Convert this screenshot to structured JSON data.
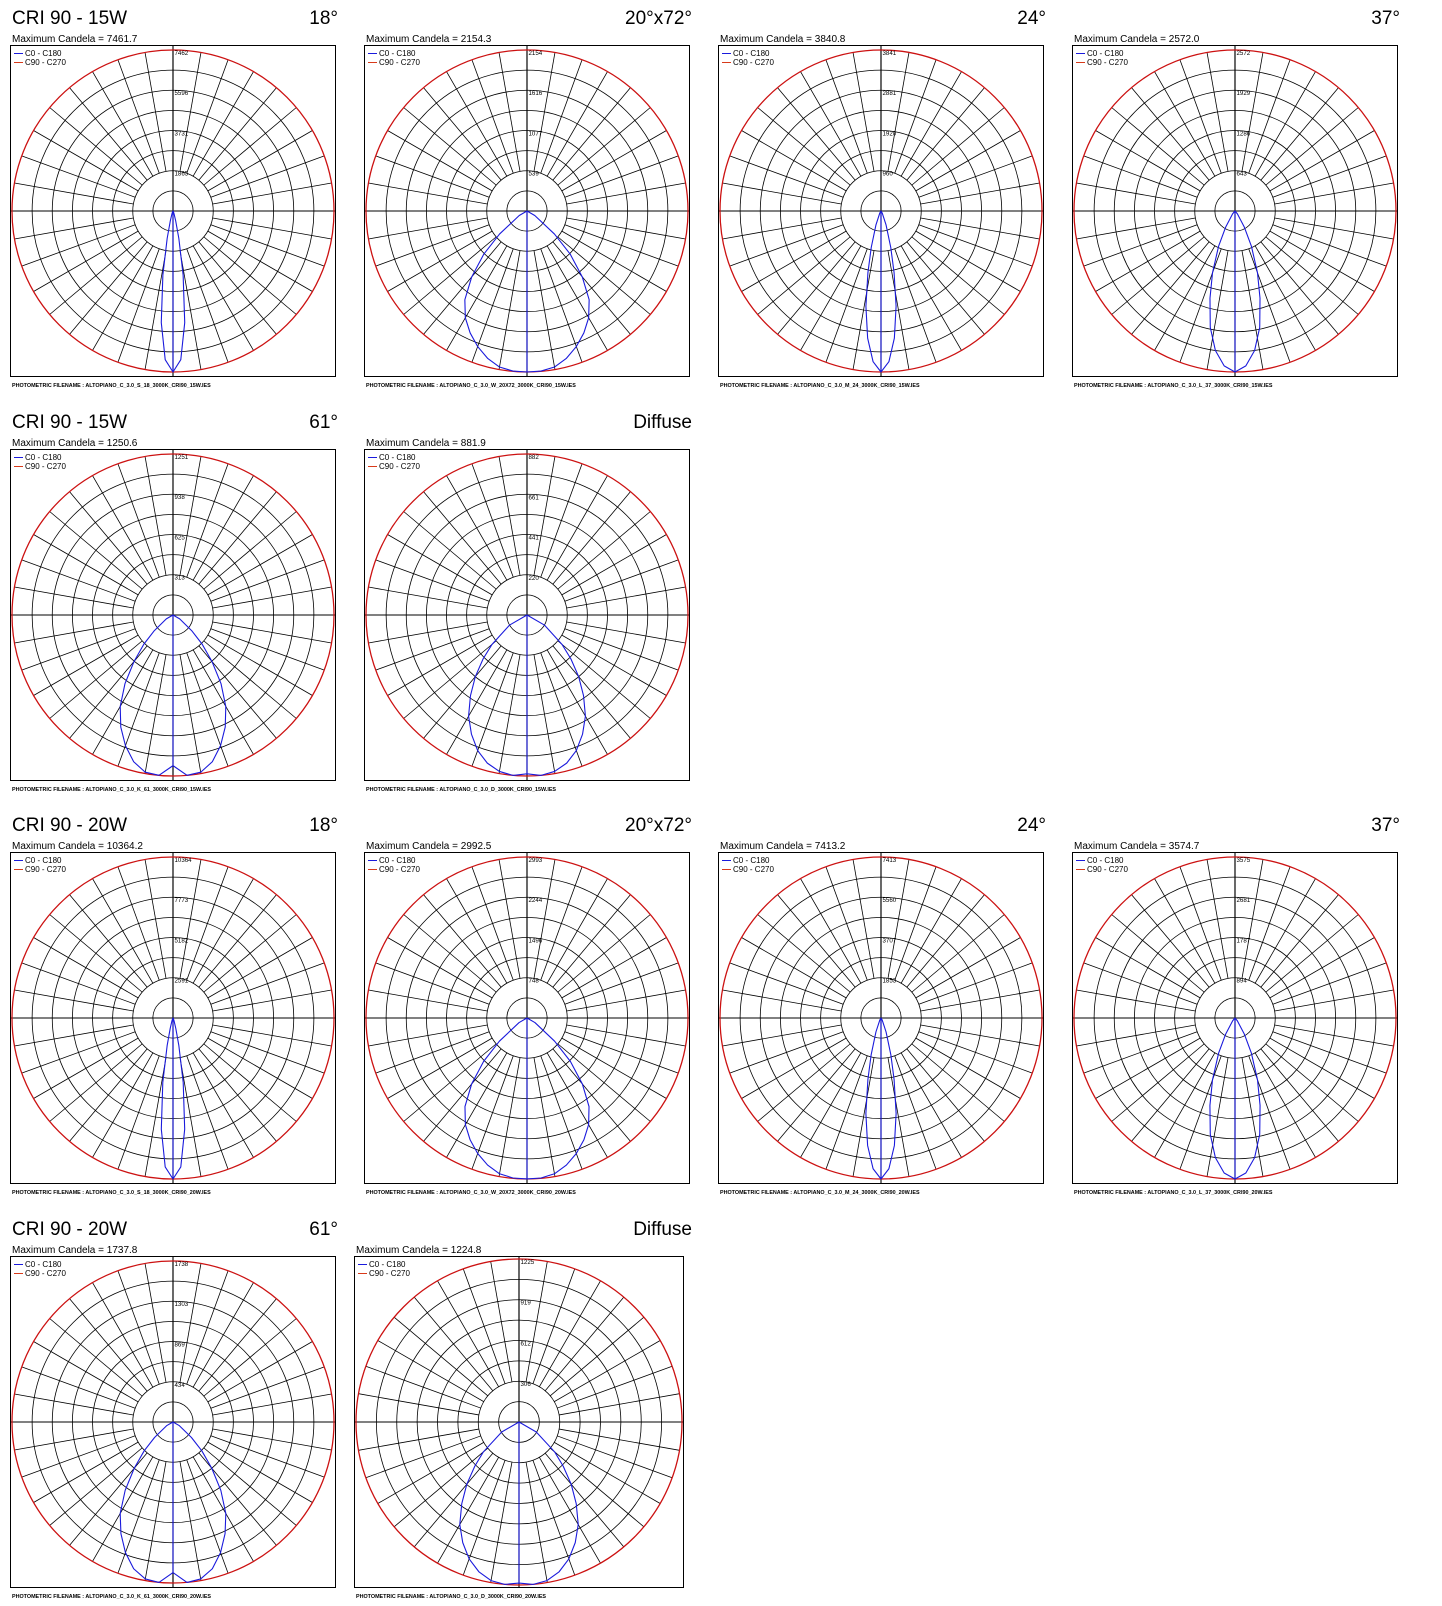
{
  "colors": {
    "c0": "#1a1adc",
    "c90": "#d83a1a",
    "outer": "#cc1111",
    "grid": "#000000"
  },
  "charts": [
    {
      "group": "CRI 90 - 15W",
      "beam": "18°",
      "max": "Maximum Candela = 7461.7",
      "ticks": [
        "7462",
        "5596",
        "3731",
        "1865"
      ],
      "file": "PHOTOMETRIC FILENAME : ALTOPIANO_C_3.0_S_18_3000K_CRI90_15W.IES"
    },
    {
      "group": "",
      "beam": "20°x72°",
      "max": "Maximum Candela = 2154.3",
      "ticks": [
        "2154",
        "1616",
        "1077",
        "539"
      ],
      "file": "PHOTOMETRIC FILENAME : ALTOPIANO_C_3.0_W_20X72_3000K_CRI90_15W.IES"
    },
    {
      "group": "",
      "beam": "24°",
      "max": "Maximum Candela = 3840.8",
      "ticks": [
        "3841",
        "2881",
        "1920",
        "960"
      ],
      "file": "PHOTOMETRIC FILENAME : ALTOPIANO_C_3.0_M_24_3000K_CRI90_15W.IES"
    },
    {
      "group": "",
      "beam": "37°",
      "max": "Maximum Candela = 2572.0",
      "ticks": [
        "2572",
        "1929",
        "1286",
        "643"
      ],
      "file": "PHOTOMETRIC FILENAME : ALTOPIANO_C_3.0_L_37_3000K_CRI90_15W.IES"
    },
    {
      "group": "CRI 90 - 15W",
      "beam": "61°",
      "max": "Maximum Candela = 1250.6",
      "ticks": [
        "1251",
        "938",
        "625",
        "313"
      ],
      "file": "PHOTOMETRIC FILENAME : ALTOPIANO_C_3.0_K_61_3000K_CRI90_15W.IES"
    },
    {
      "group": "",
      "beam": "Diffuse",
      "max": "Maximum Candela = 881.9",
      "ticks": [
        "882",
        "661",
        "441",
        "220"
      ],
      "file": "PHOTOMETRIC FILENAME : ALTOPIANO_C_3.0_D_3000K_CRI90_15W.IES"
    },
    {
      "group": "CRI 90 - 20W",
      "beam": "18°",
      "max": "Maximum Candela = 10364.2",
      "ticks": [
        "10364",
        "7773",
        "5182",
        "2591"
      ],
      "file": "PHOTOMETRIC FILENAME : ALTOPIANO_C_3.0_S_18_3000K_CRI90_20W.IES"
    },
    {
      "group": "",
      "beam": "20°x72°",
      "max": "Maximum Candela = 2992.5",
      "ticks": [
        "2993",
        "2244",
        "1496",
        "748"
      ],
      "file": "PHOTOMETRIC FILENAME : ALTOPIANO_C_3.0_W_20X72_3000K_CRI90_20W.IES"
    },
    {
      "group": "",
      "beam": "24°",
      "max": "Maximum Candela = 7413.2",
      "ticks": [
        "7413",
        "5560",
        "3707",
        "1853"
      ],
      "file": "PHOTOMETRIC FILENAME : ALTOPIANO_C_3.0_M_24_3000K_CRI90_20W.IES"
    },
    {
      "group": "",
      "beam": "37°",
      "max": "Maximum Candela = 3574.7",
      "ticks": [
        "3575",
        "2681",
        "1787",
        "894"
      ],
      "file": "PHOTOMETRIC FILENAME : ALTOPIANO_C_3.0_L_37_3000K_CRI90_20W.IES"
    },
    {
      "group": "CRI 90 - 20W",
      "beam": "61°",
      "max": "Maximum Candela = 1737.8",
      "ticks": [
        "1738",
        "1303",
        "869",
        "434"
      ],
      "file": "PHOTOMETRIC FILENAME : ALTOPIANO_C_3.0_K_61_3000K_CRI90_20W.IES"
    },
    {
      "group": "",
      "beam": "Diffuse",
      "max": "Maximum Candela = 1224.8",
      "ticks": [
        "1225",
        "919",
        "612",
        "306"
      ],
      "file": "PHOTOMETRIC FILENAME : ALTOPIANO_C_3.0_D_3000K_CRI90_20W.IES"
    }
  ],
  "legend": {
    "c0": "C0 - C180",
    "c90": "C90 - C270"
  },
  "chart_data": [
    {
      "type": "polar",
      "max_candela": 7461.7,
      "r_ticks": [
        1865,
        3731,
        5596,
        7462
      ],
      "series": [
        {
          "name": "C0 - C180",
          "angle_deg": [
            0,
            3,
            6,
            9,
            12,
            15,
            20,
            30
          ],
          "candela": [
            7461.7,
            6900,
            5200,
            3000,
            1300,
            500,
            150,
            40
          ]
        },
        {
          "name": "C90 - C270",
          "angle_deg": [
            0,
            3,
            6,
            9,
            12,
            15,
            20,
            30
          ],
          "candela": [
            7461.7,
            6900,
            5200,
            3000,
            1300,
            500,
            150,
            40
          ]
        }
      ]
    },
    {
      "type": "polar",
      "max_candela": 2154.3,
      "r_ticks": [
        539,
        1077,
        1616,
        2154
      ],
      "series": [
        {
          "name": "C0 - C180",
          "angle_deg": [
            0,
            5,
            10,
            15,
            20,
            25,
            30,
            35,
            40,
            45,
            50,
            60
          ],
          "candela": [
            2154,
            2150,
            2120,
            2040,
            1930,
            1800,
            1650,
            1450,
            1150,
            820,
            480,
            120
          ]
        },
        {
          "name": "C90 - C270",
          "angle_deg": [
            0,
            5,
            10,
            15,
            20,
            25,
            30,
            35,
            40,
            45,
            50,
            60
          ],
          "candela": [
            2154,
            2150,
            2120,
            2040,
            1930,
            1800,
            1650,
            1450,
            1150,
            820,
            480,
            120
          ]
        }
      ]
    },
    {
      "type": "polar",
      "max_candela": 3840.8,
      "r_ticks": [
        960,
        1920,
        2881,
        3841
      ],
      "series": [
        {
          "name": "C0 - C180",
          "angle_deg": [
            0,
            3,
            6,
            9,
            12,
            15,
            20,
            30
          ],
          "candela": [
            3840.8,
            3600,
            3050,
            2300,
            1500,
            900,
            350,
            60
          ]
        },
        {
          "name": "C90 - C270",
          "angle_deg": [
            0,
            3,
            6,
            9,
            12,
            15,
            20,
            30
          ],
          "candela": [
            3840.8,
            3600,
            3050,
            2300,
            1500,
            900,
            350,
            60
          ]
        }
      ]
    },
    {
      "type": "polar",
      "max_candela": 2572.0,
      "r_ticks": [
        643,
        1286,
        1929,
        2572
      ],
      "series": [
        {
          "name": "C0 - C180",
          "angle_deg": [
            0,
            4,
            8,
            12,
            16,
            20,
            25,
            30,
            40
          ],
          "candela": [
            2572,
            2480,
            2250,
            1900,
            1450,
            1050,
            620,
            300,
            60
          ]
        },
        {
          "name": "C90 - C270",
          "angle_deg": [
            0,
            4,
            8,
            12,
            16,
            20,
            25,
            30,
            40
          ],
          "candela": [
            2572,
            2480,
            2250,
            1900,
            1450,
            1050,
            620,
            300,
            60
          ]
        }
      ]
    },
    {
      "type": "polar",
      "max_candela": 1250.6,
      "r_ticks": [
        313,
        625,
        938,
        1251
      ],
      "series": [
        {
          "name": "C0 - C180",
          "angle_deg": [
            0,
            5,
            10,
            15,
            20,
            25,
            30,
            35,
            40,
            45,
            50,
            60
          ],
          "candela": [
            1170,
            1250,
            1240,
            1180,
            1080,
            960,
            820,
            650,
            470,
            320,
            190,
            60
          ]
        },
        {
          "name": "C90 - C270",
          "angle_deg": [
            0,
            5,
            10,
            15,
            20,
            25,
            30,
            35,
            40,
            45,
            50,
            60
          ],
          "candela": [
            1170,
            1250,
            1240,
            1180,
            1080,
            960,
            820,
            650,
            470,
            320,
            190,
            60
          ]
        }
      ]
    },
    {
      "type": "polar",
      "max_candela": 881.9,
      "r_ticks": [
        220,
        441,
        661,
        882
      ],
      "series": [
        {
          "name": "C0 - C180",
          "angle_deg": [
            0,
            5,
            10,
            15,
            20,
            25,
            30,
            35,
            40,
            45,
            50,
            60
          ],
          "candela": [
            870,
            882,
            870,
            840,
            790,
            720,
            640,
            540,
            440,
            340,
            250,
            110
          ]
        },
        {
          "name": "C90 - C270",
          "angle_deg": [
            0,
            5,
            10,
            15,
            20,
            25,
            30,
            35,
            40,
            45,
            50,
            60
          ],
          "candela": [
            870,
            882,
            870,
            840,
            790,
            720,
            640,
            540,
            440,
            340,
            250,
            110
          ]
        }
      ]
    },
    {
      "type": "polar",
      "max_candela": 10364.2,
      "r_ticks": [
        2591,
        5182,
        7773,
        10364
      ],
      "series": [
        {
          "name": "C0 - C180",
          "angle_deg": [
            0,
            3,
            6,
            9,
            12,
            15,
            20,
            30
          ],
          "candela": [
            10364.2,
            9600,
            7200,
            4200,
            1800,
            700,
            200,
            50
          ]
        },
        {
          "name": "C90 - C270",
          "angle_deg": [
            0,
            3,
            6,
            9,
            12,
            15,
            20,
            30
          ],
          "candela": [
            10364.2,
            9600,
            7200,
            4200,
            1800,
            700,
            200,
            50
          ]
        }
      ]
    },
    {
      "type": "polar",
      "max_candela": 2992.5,
      "r_ticks": [
        748,
        1496,
        2244,
        2993
      ],
      "series": [
        {
          "name": "C0 - C180",
          "angle_deg": [
            0,
            5,
            10,
            15,
            20,
            25,
            30,
            35,
            40,
            45,
            50,
            60
          ],
          "candela": [
            2992,
            2985,
            2940,
            2830,
            2680,
            2500,
            2290,
            2010,
            1600,
            1140,
            670,
            170
          ]
        },
        {
          "name": "C90 - C270",
          "angle_deg": [
            0,
            5,
            10,
            15,
            20,
            25,
            30,
            35,
            40,
            45,
            50,
            60
          ],
          "candela": [
            2992,
            2985,
            2940,
            2830,
            2680,
            2500,
            2290,
            2010,
            1600,
            1140,
            670,
            170
          ]
        }
      ]
    },
    {
      "type": "polar",
      "max_candela": 7413.2,
      "r_ticks": [
        1853,
        3707,
        5560,
        7413
      ],
      "series": [
        {
          "name": "C0 - C180",
          "angle_deg": [
            0,
            3,
            6,
            9,
            12,
            15,
            20,
            30
          ],
          "candela": [
            7413.2,
            6950,
            5900,
            4450,
            2900,
            1750,
            680,
            110
          ]
        },
        {
          "name": "C90 - C270",
          "angle_deg": [
            0,
            3,
            6,
            9,
            12,
            15,
            20,
            30
          ],
          "candela": [
            7413.2,
            6950,
            5900,
            4450,
            2900,
            1750,
            680,
            110
          ]
        }
      ]
    },
    {
      "type": "polar",
      "max_candela": 3574.7,
      "r_ticks": [
        894,
        1787,
        2681,
        3575
      ],
      "series": [
        {
          "name": "C0 - C180",
          "angle_deg": [
            0,
            4,
            8,
            12,
            16,
            20,
            25,
            30,
            40
          ],
          "candela": [
            3574.7,
            3450,
            3130,
            2640,
            2020,
            1460,
            860,
            420,
            80
          ]
        },
        {
          "name": "C90 - C270",
          "angle_deg": [
            0,
            4,
            8,
            12,
            16,
            20,
            25,
            30,
            40
          ],
          "candela": [
            3574.7,
            3450,
            3130,
            2640,
            2020,
            1460,
            860,
            420,
            80
          ]
        }
      ]
    },
    {
      "type": "polar",
      "max_candela": 1737.8,
      "r_ticks": [
        434,
        869,
        1303,
        1738
      ],
      "series": [
        {
          "name": "C0 - C180",
          "angle_deg": [
            0,
            5,
            10,
            15,
            20,
            25,
            30,
            35,
            40,
            45,
            50,
            60
          ],
          "candela": [
            1625,
            1738,
            1720,
            1640,
            1500,
            1330,
            1140,
            900,
            650,
            440,
            260,
            80
          ]
        },
        {
          "name": "C90 - C270",
          "angle_deg": [
            0,
            5,
            10,
            15,
            20,
            25,
            30,
            35,
            40,
            45,
            50,
            60
          ],
          "candela": [
            1625,
            1738,
            1720,
            1640,
            1500,
            1330,
            1140,
            900,
            650,
            440,
            260,
            80
          ]
        }
      ]
    },
    {
      "type": "polar",
      "max_candela": 1224.8,
      "r_ticks": [
        306,
        612,
        919,
        1225
      ],
      "series": [
        {
          "name": "C0 - C180",
          "angle_deg": [
            0,
            5,
            10,
            15,
            20,
            25,
            30,
            35,
            40,
            45,
            50,
            60
          ],
          "candela": [
            1210,
            1225,
            1210,
            1165,
            1095,
            1000,
            890,
            750,
            610,
            470,
            350,
            150
          ]
        },
        {
          "name": "C90 - C270",
          "angle_deg": [
            0,
            5,
            10,
            15,
            20,
            25,
            30,
            35,
            40,
            45,
            50,
            60
          ],
          "candela": [
            1210,
            1225,
            1210,
            1165,
            1095,
            1000,
            890,
            750,
            610,
            470,
            350,
            150
          ]
        }
      ]
    }
  ]
}
